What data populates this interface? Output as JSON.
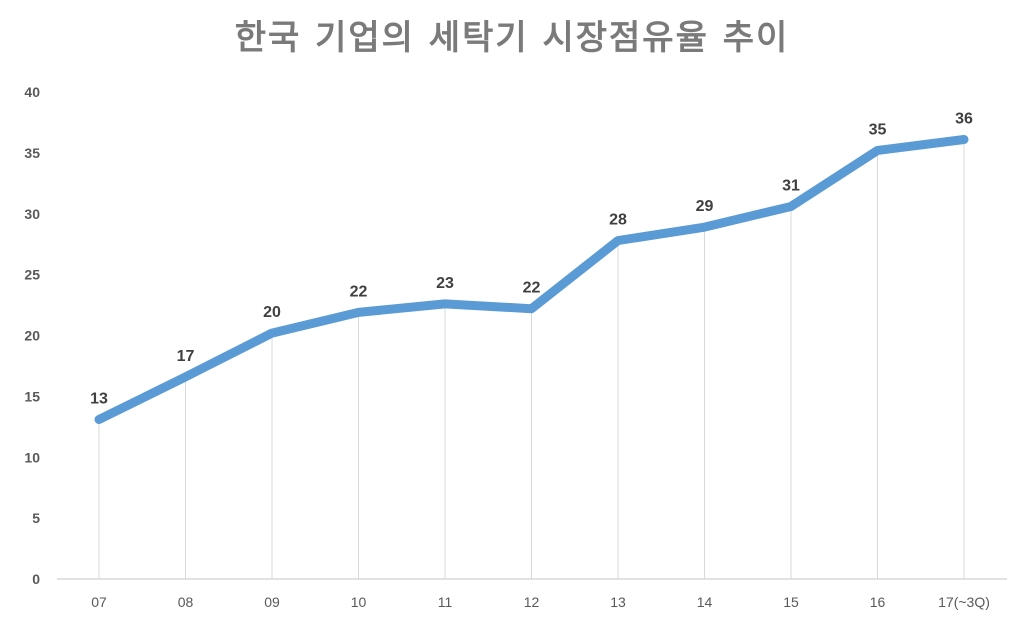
{
  "title": "한국 기업의 세탁기 시장점유율 추이",
  "colors": {
    "line": "#5B9BD5",
    "gridline": "#d9d9d9",
    "axis": "#d9d9d9",
    "label": "#404040",
    "title": "#7a7a7a"
  },
  "chart_data": {
    "type": "line",
    "title": "한국 기업의 세탁기 시장점유율 추이",
    "xlabel": "",
    "ylabel": "",
    "categories": [
      "07",
      "08",
      "09",
      "10",
      "11",
      "12",
      "13",
      "14",
      "15",
      "16",
      "17(~3Q)"
    ],
    "series": [
      {
        "name": "시장점유율",
        "values": [
          13.1,
          16.6,
          20.2,
          21.9,
          22.6,
          22.2,
          27.8,
          28.9,
          30.6,
          35.2,
          36.1
        ],
        "data_labels": [
          "13",
          "17",
          "20",
          "22",
          "23",
          "22",
          "28",
          "29",
          "31",
          "35",
          "36"
        ]
      }
    ],
    "ylim": [
      0,
      40
    ],
    "yticks": [
      "0",
      "5",
      "10",
      "15",
      "20",
      "25",
      "30",
      "35",
      "40"
    ],
    "grid": "vertical drop lines at categories",
    "legend": "none"
  }
}
